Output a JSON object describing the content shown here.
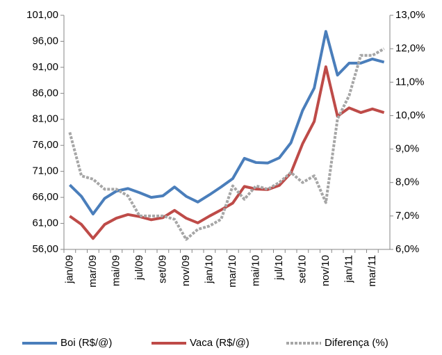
{
  "chart_data": {
    "type": "line",
    "categories": [
      "jan/09",
      null,
      "mar/09",
      null,
      "mai/09",
      null,
      "jul/09",
      null,
      "set/09",
      null,
      "nov/09",
      null,
      "jan/10",
      null,
      "mar/10",
      null,
      "mai/10",
      null,
      "jul/10",
      null,
      "set/10",
      null,
      "nov/10",
      null,
      "jan/11",
      null,
      "mar/11",
      null
    ],
    "series": [
      {
        "name": "Boi (R$/@)",
        "color": "#4a7ebb",
        "values": [
          68.4,
          66.2,
          62.8,
          65.8,
          67.2,
          67.7,
          66.9,
          66.0,
          66.3,
          68.0,
          66.2,
          65.1,
          66.5,
          68.0,
          69.6,
          73.5,
          72.7,
          72.6,
          73.6,
          76.5,
          82.7,
          87.0,
          97.9,
          89.5,
          91.8,
          91.8,
          92.6,
          92.0
        ]
      },
      {
        "name": "Vaca (R$/@)",
        "color": "#be4b48",
        "values": [
          62.4,
          60.8,
          58.1,
          60.8,
          62.0,
          62.7,
          62.3,
          61.7,
          62.1,
          63.5,
          62.0,
          61.1,
          62.4,
          63.6,
          64.9,
          68.1,
          67.6,
          67.5,
          68.3,
          70.7,
          76.3,
          80.6,
          91.1,
          81.6,
          83.2,
          82.3,
          83.0,
          82.3
        ]
      },
      {
        "name": "Diferença (%)",
        "color": "#a6a6a6",
        "axis": "y2",
        "dash": true,
        "values": [
          9.5,
          8.2,
          8.1,
          7.8,
          7.8,
          7.6,
          7.0,
          7.0,
          7.0,
          6.9,
          6.3,
          6.6,
          6.7,
          6.9,
          7.9,
          7.5,
          7.9,
          7.8,
          8.0,
          8.3,
          8.0,
          8.2,
          7.4,
          9.9,
          10.6,
          11.8,
          11.8,
          12.0
        ]
      }
    ],
    "ylim": [
      56,
      101
    ],
    "yticks": [
      {
        "value": 56,
        "label": "56,00"
      },
      {
        "value": 61,
        "label": "61,00"
      },
      {
        "value": 66,
        "label": "66,00"
      },
      {
        "value": 71,
        "label": "71,00"
      },
      {
        "value": 76,
        "label": "76,00"
      },
      {
        "value": 81,
        "label": "81,00"
      },
      {
        "value": 86,
        "label": "86,00"
      },
      {
        "value": 91,
        "label": "91,00"
      },
      {
        "value": 96,
        "label": "96,00"
      },
      {
        "value": 101,
        "label": "101,00"
      }
    ],
    "y2lim": [
      6,
      13
    ],
    "y2ticks": [
      {
        "value": 6,
        "label": "6,0%"
      },
      {
        "value": 7,
        "label": "7,0%"
      },
      {
        "value": 8,
        "label": "8,0%"
      },
      {
        "value": 9,
        "label": "9,0%"
      },
      {
        "value": 10,
        "label": "10,0%"
      },
      {
        "value": 11,
        "label": "11,0%"
      },
      {
        "value": 12,
        "label": "12,0%"
      },
      {
        "value": 13,
        "label": "13,0%"
      }
    ]
  }
}
